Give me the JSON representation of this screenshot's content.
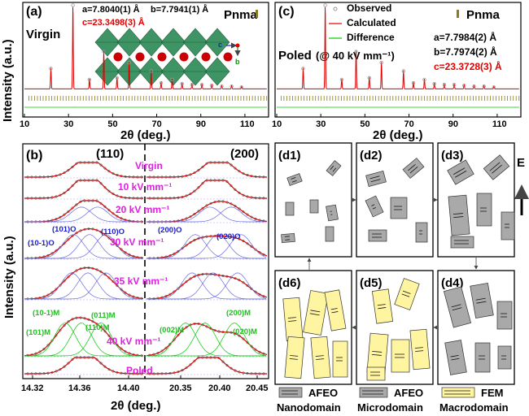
{
  "panel_a": {
    "tag": "(a)",
    "sample": "Virgin",
    "space_group": "Pnma",
    "lattice_a": "a=7.8040(1) Å",
    "lattice_b": "b=7.7941(1) Å",
    "lattice_c": "c=23.3498(3) Å",
    "axis_c": "c",
    "axis_b": "b",
    "ylabel": "Intensity (a.u.)",
    "xlabel": "2θ (deg.)",
    "xticks": [
      "10",
      "30",
      "50",
      "70",
      "90",
      "110"
    ]
  },
  "panel_c": {
    "tag": "(c)",
    "legend": [
      "Observed",
      "Calculated",
      "Difference"
    ],
    "space_group": "Pnma",
    "sample": "Poled",
    "condition": "(@ 40 kV mm⁻¹)",
    "lattice_a": "a=7.7984(2) Å",
    "lattice_b": "b=7.7974(2) Å",
    "lattice_c": "c=23.3728(3) Å",
    "xlabel": "2θ (deg.)",
    "xticks": [
      "10",
      "30",
      "50",
      "70",
      "90",
      "110"
    ]
  },
  "panel_b": {
    "tag": "(b)",
    "peak_left": "(110)",
    "peak_right": "(200)",
    "ylabel": "Intensity (a.u.)",
    "xlabel": "2θ (deg.)",
    "xticks": [
      "14.32",
      "14.36",
      "14.40",
      "20.35",
      "20.40",
      "20.45"
    ],
    "fields": [
      "Virgin",
      "10 kV mm⁻¹",
      "20 kV mm⁻¹",
      "30 kV mm⁻¹",
      "35 kV mm⁻¹",
      "40 kV mm⁻¹",
      "Poled"
    ],
    "ortho_labels": [
      "(101)O",
      "(10-1)O",
      "(110)O",
      "(200)O",
      "(020)O"
    ],
    "mono_labels": [
      "(10-1)M",
      "(011)M",
      "(101)M",
      "(110)M",
      "(002)M",
      "(200)M",
      "(020)M"
    ]
  },
  "panel_d": {
    "tags": [
      "(d1)",
      "(d2)",
      "(d3)",
      "(d4)",
      "(d5)",
      "(d6)"
    ],
    "field_symbol": "E",
    "legend": [
      {
        "name": "AFEO",
        "sub": "Nanodomain"
      },
      {
        "name": "AFEO",
        "sub": "Microdomain"
      },
      {
        "name": "FEM",
        "sub": "Macrodomain"
      }
    ]
  },
  "colors": {
    "observed": "#999999",
    "calculated": "#e00000",
    "difference": "#00cc00",
    "label_magenta": "#e020e0",
    "label_blue": "#1a1ad0",
    "label_green": "#20c020",
    "ticks_olive": "#8a7a20",
    "octahedra": "#2e8b57",
    "atoms": "#cc0000",
    "fe_domain": "#fff4a0",
    "afe_domain": "#a9a9a9"
  }
}
